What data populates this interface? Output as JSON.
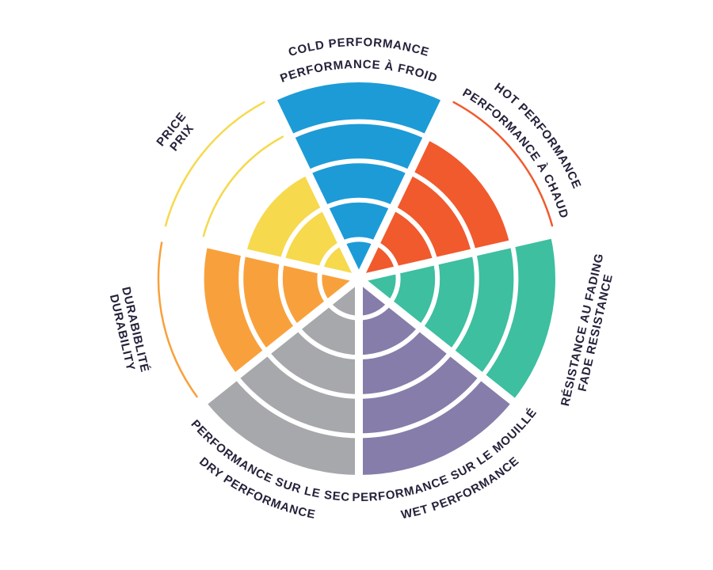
{
  "page": {
    "background": "#ffffff"
  },
  "chart_data": {
    "type": "radar",
    "subtype": "polar-sector-rating-wheel",
    "title": "",
    "legend_position": "none",
    "rings": 5,
    "max_value": 5,
    "ring_separator_color": "#ffffff",
    "label_text_color": "#25213A",
    "categories": [
      "COLD PERFORMANCE / PERFORMANCE À FROID",
      "HOT PERFORMANCE / PERFORMANCE À CHAUD",
      "RÉSISTANCE AU FADING / FADE RESISTANCE",
      "PERFORMANCE SUR LE MOUILLÉ / WET PERFORMANCE",
      "PERFORMANCE SUR LE SEC / DRY PERFORMANCE",
      "DURABIBLITÉ / DURABILITY",
      "PRICE / PRIX"
    ],
    "series": [
      {
        "name": "rating",
        "values": [
          5,
          4,
          5,
          5,
          5,
          4,
          3
        ]
      }
    ],
    "segments": [
      {
        "id": "cold",
        "label_line1": "COLD PERFORMANCE",
        "label_line2": "PERFORMANCE À FROID",
        "value": 5,
        "color": "#1D9BD7",
        "label_style": "arc-top"
      },
      {
        "id": "hot",
        "label_line1": "HOT PERFORMANCE",
        "label_line2": "PERFORMANCE À CHAUD",
        "value": 4,
        "color": "#F05A2D",
        "label_style": "arc-top"
      },
      {
        "id": "fade",
        "label_line1": "RÉSISTANCE AU FADING",
        "label_line2": "FADE RESISTANCE",
        "value": 5,
        "color": "#3DBFA0",
        "label_style": "straight"
      },
      {
        "id": "wet",
        "label_line1": "PERFORMANCE SUR LE MOUILLÉ",
        "label_line2": "WET PERFORMANCE",
        "value": 5,
        "color": "#867DAA",
        "label_style": "arc-bottom"
      },
      {
        "id": "dry",
        "label_line1": "PERFORMANCE SUR LE SEC",
        "label_line2": "DRY PERFORMANCE",
        "value": 5,
        "color": "#A6A8AB",
        "label_style": "arc-bottom"
      },
      {
        "id": "durability",
        "label_line1": "DURABIBLITÉ",
        "label_line2": "DURABILITY",
        "value": 4,
        "color": "#F8A13C",
        "label_style": "straight"
      },
      {
        "id": "price",
        "label_line1": "PRICE",
        "label_line2": "PRIX",
        "value": 3,
        "color": "#F6D94C",
        "label_style": "straight"
      }
    ],
    "notes": "Unfilled ring levels are drawn as thin outline arcs in the segment color"
  }
}
